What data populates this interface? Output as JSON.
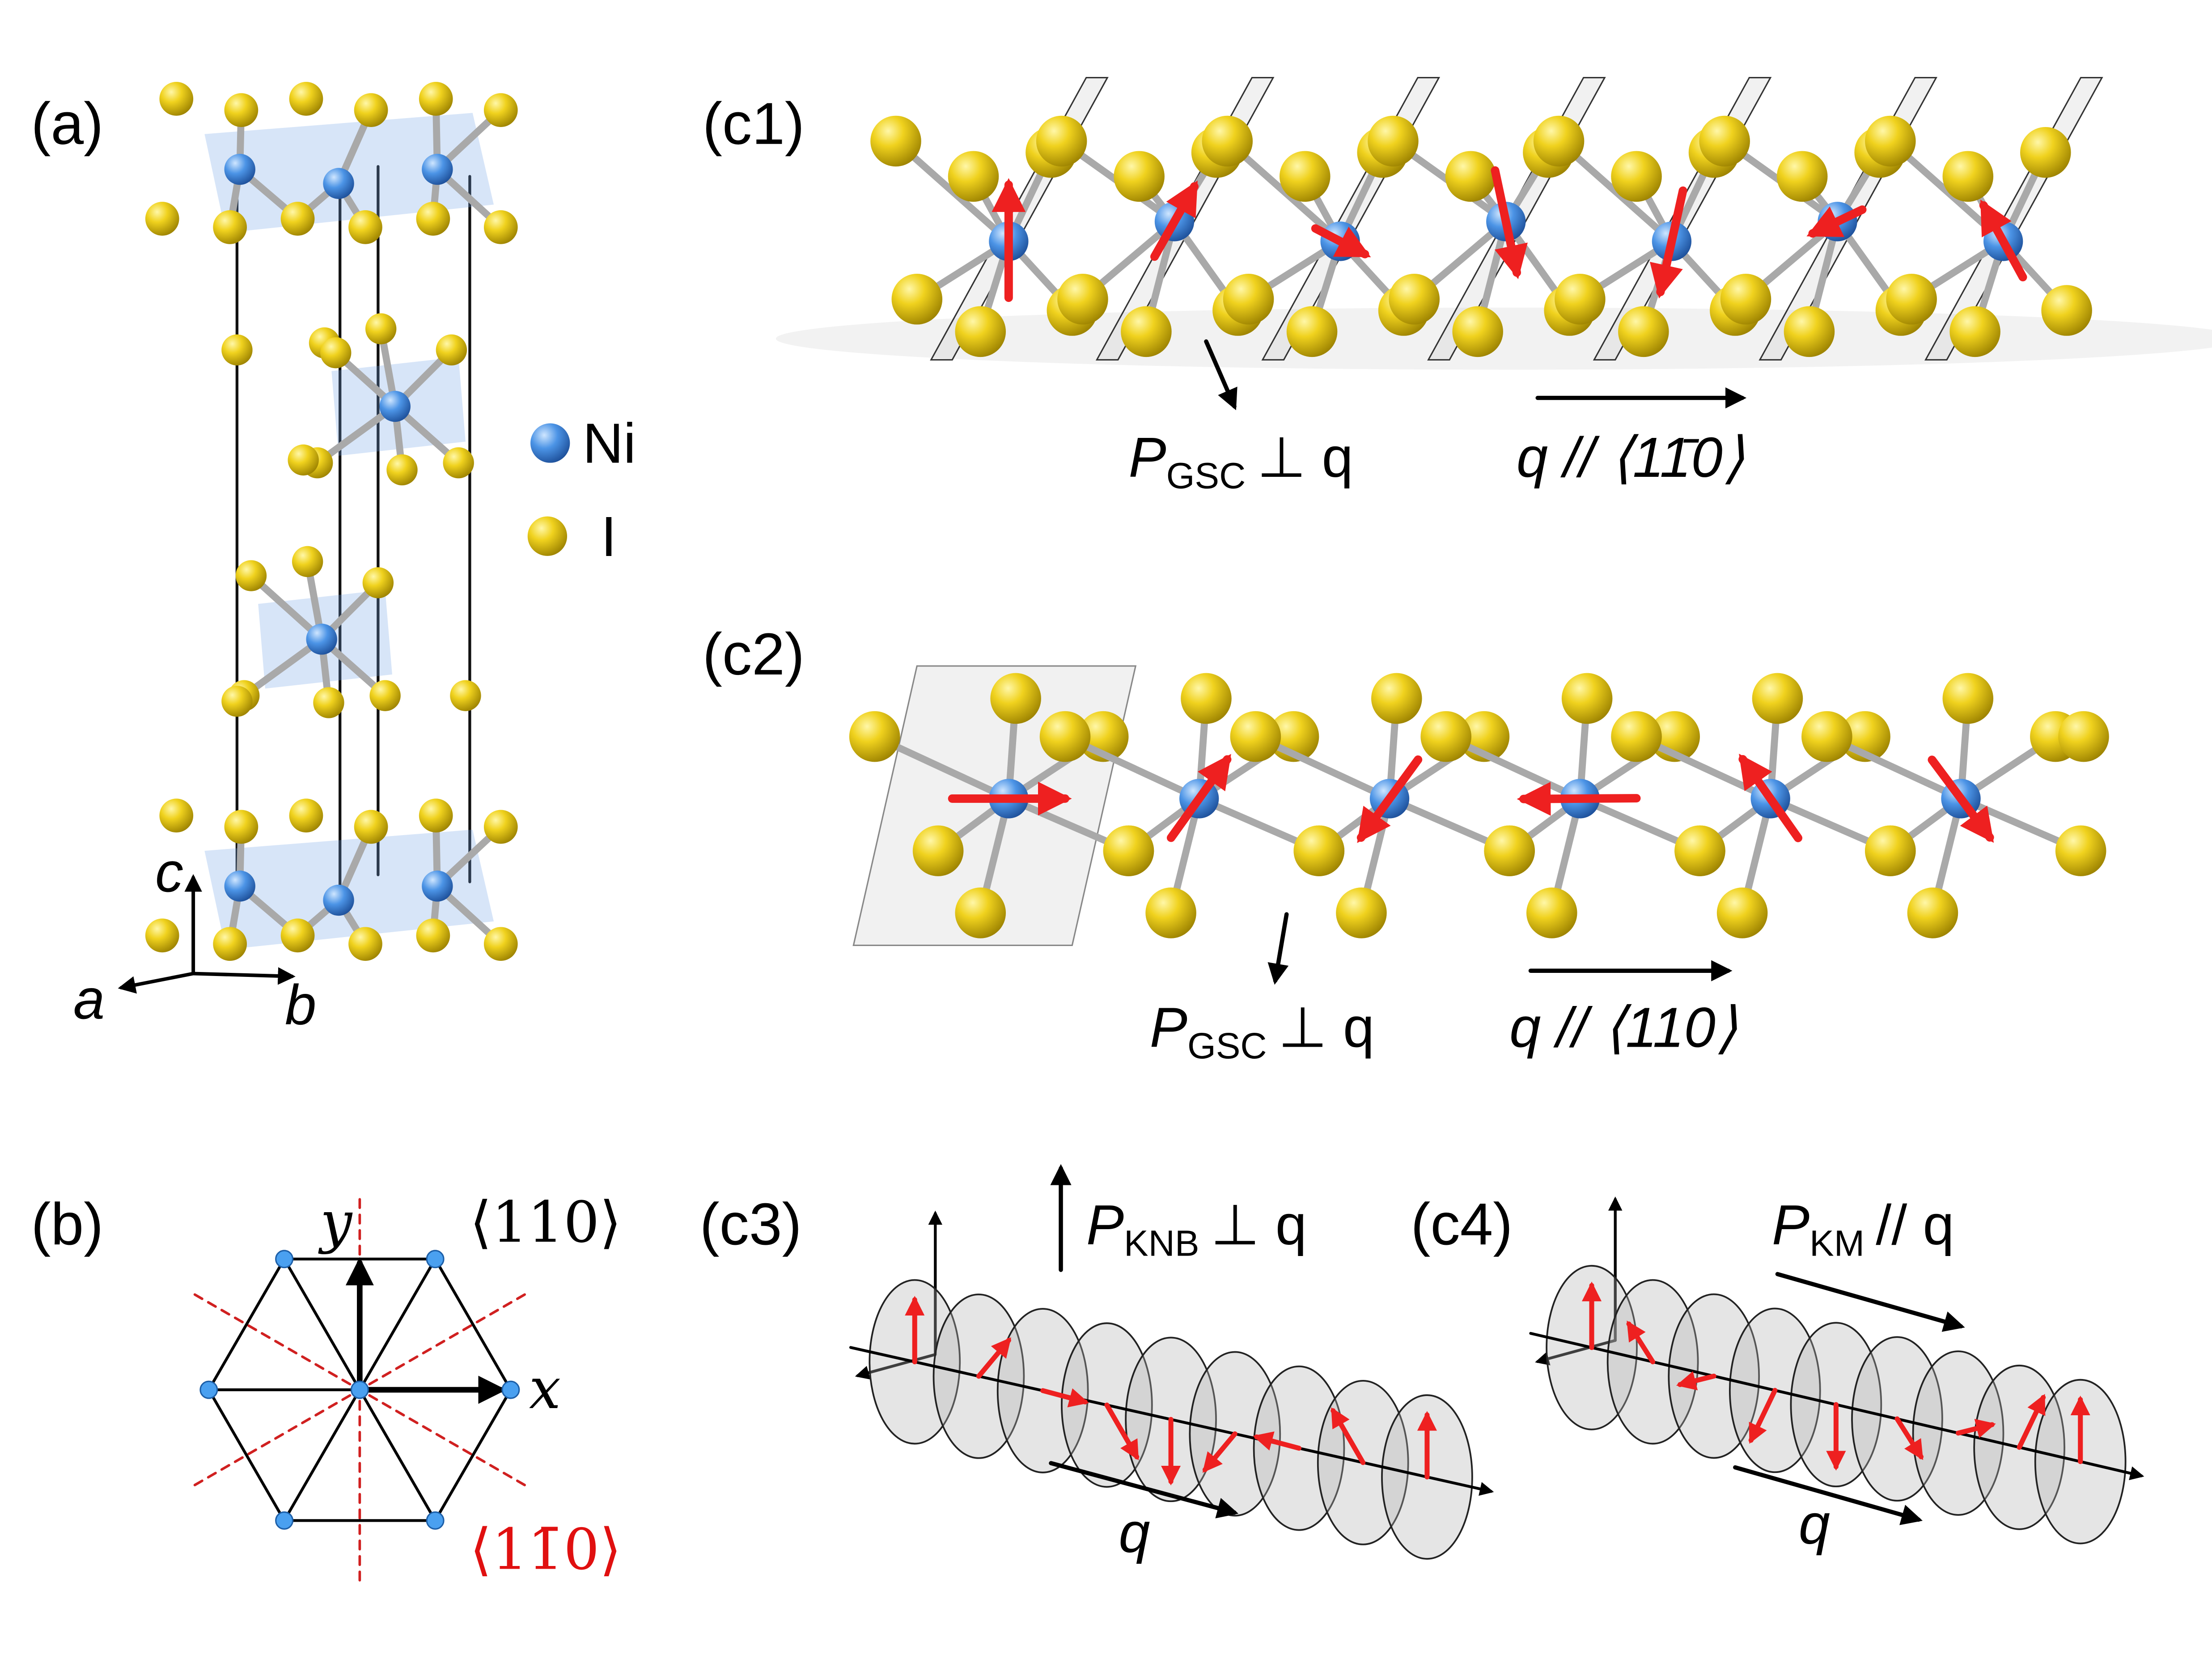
{
  "panels": {
    "a": {
      "label": "(a)",
      "legend": [
        {
          "label": "Ni"
        },
        {
          "label": "I"
        }
      ],
      "axes": {
        "a": "a",
        "b": "b",
        "c": "c"
      }
    },
    "b": {
      "label": "(b)",
      "axes": {
        "x": "x",
        "y": "y"
      },
      "directions": [
        "⟨110⟩",
        "⟨11̄0⟩"
      ]
    },
    "c1": {
      "label": "(c1)",
      "polarization": {
        "symbol": "P",
        "subscript": "GSC",
        "relation": "⊥ q"
      },
      "propagation": "q // ⟨11̄0⟩"
    },
    "c2": {
      "label": "(c2)",
      "polarization": {
        "symbol": "P",
        "subscript": "GSC",
        "relation": "⊥ q"
      },
      "propagation": "q // ⟨110⟩"
    },
    "c3": {
      "label": "(c3)",
      "polarization": {
        "symbol": "P",
        "subscript": "KNB",
        "relation": "⊥ q"
      },
      "propagation": "q"
    },
    "c4": {
      "label": "(c4)",
      "polarization": {
        "symbol": "P",
        "subscript": "KM",
        "relation": "// q"
      },
      "propagation": "q"
    }
  }
}
